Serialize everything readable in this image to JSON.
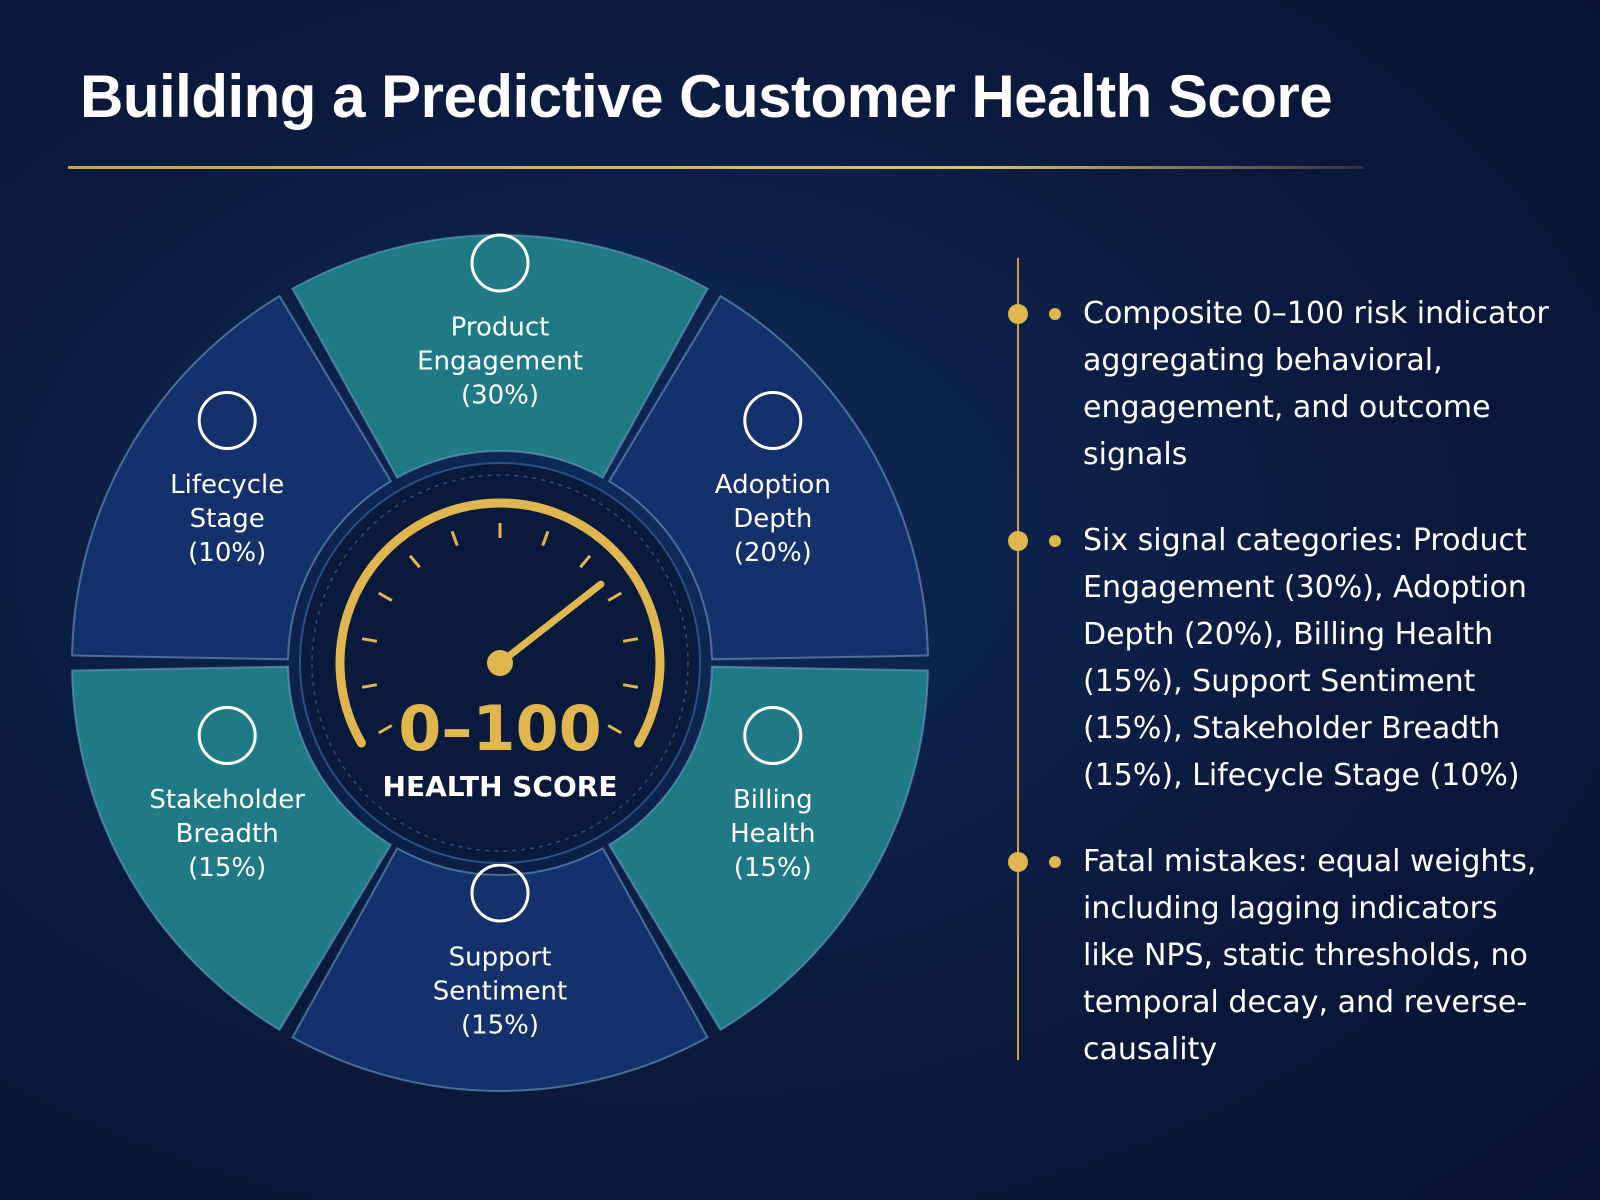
{
  "header": {
    "title": "Building a Predictive Customer Health Score"
  },
  "wheel": {
    "center": {
      "score": "0–100",
      "caption": "HEALTH SCORE"
    },
    "segments": [
      {
        "label": [
          "Product",
          "Engagement"
        ],
        "weight": "(30%)",
        "color": "#1f7a85"
      },
      {
        "label": [
          "Adoption",
          "Depth"
        ],
        "weight": "(20%)",
        "color": "#14316b"
      },
      {
        "label": [
          "Billing",
          "Health"
        ],
        "weight": "(15%)",
        "color": "#1f7a85"
      },
      {
        "label": [
          "Support",
          "Sentiment"
        ],
        "weight": "(15%)",
        "color": "#14316b"
      },
      {
        "label": [
          "Stakeholder",
          "Breadth"
        ],
        "weight": "(15%)",
        "color": "#1f7a85"
      },
      {
        "label": [
          "Lifecycle",
          "Stage"
        ],
        "weight": "(10%)",
        "color": "#14316b"
      }
    ]
  },
  "bullets": [
    "Composite 0–100 risk indicator aggregating behavioral, engagement, and outcome signals",
    "Six signal categories: Product Engagement (30%), Adoption Depth (20%), Billing Health (15%), Support Sentiment (15%), Stakeholder Breadth (15%), Lifecycle Stage (10%)",
    "Fatal mistakes: equal weights, including lagging indicators like NPS, static thresholds, no temporal decay, and reverse-causality"
  ]
}
